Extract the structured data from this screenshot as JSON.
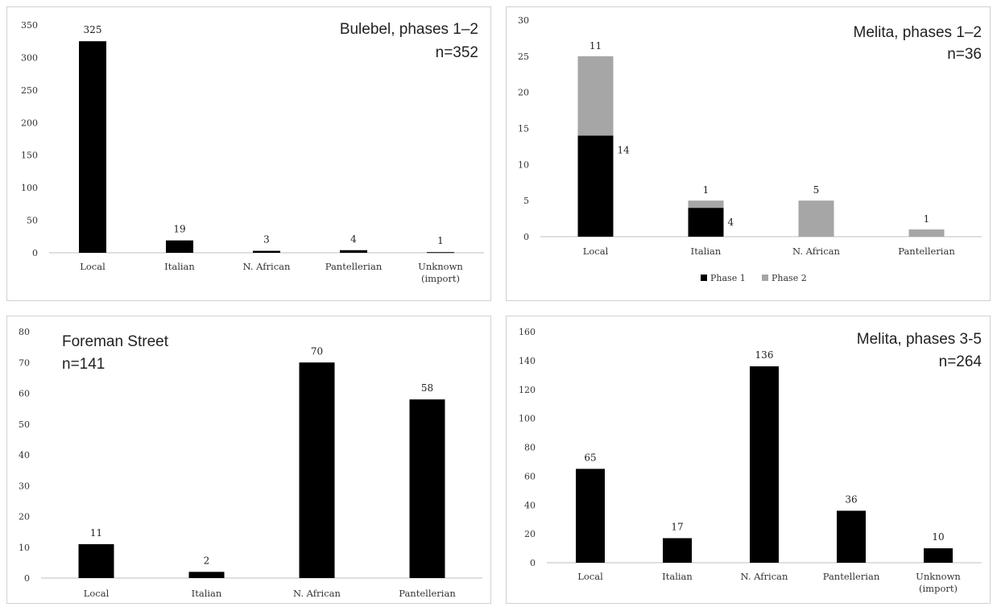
{
  "chart_data": [
    {
      "type": "bar",
      "title": "Bulebel, phases 1–2",
      "subtitle": "n=352",
      "categories": [
        "Local",
        "Italian",
        "N. African",
        "Pantellerian",
        "Unknown\n(import)"
      ],
      "values": [
        325,
        19,
        3,
        4,
        1
      ],
      "ylim": [
        0,
        350
      ],
      "yticks": [
        0,
        50,
        100,
        150,
        200,
        250,
        300,
        350
      ],
      "colors": {
        "bar": "#000000"
      }
    },
    {
      "type": "bar",
      "stacked": true,
      "title": "Melita, phases 1–2",
      "subtitle": "n=36",
      "categories": [
        "Local",
        "Italian",
        "N. African",
        "Pantellerian"
      ],
      "series": [
        {
          "name": "Phase  1",
          "values": [
            14,
            4,
            0,
            0
          ],
          "labels": [
            "14",
            "4",
            "",
            ""
          ],
          "color": "#000000"
        },
        {
          "name": "Phase 2",
          "values": [
            11,
            1,
            5,
            1
          ],
          "labels": [
            "11",
            "1",
            "5",
            "1"
          ],
          "color": "#a6a6a6"
        }
      ],
      "ylim": [
        0,
        30
      ],
      "yticks": [
        0,
        5,
        10,
        15,
        20,
        25,
        30
      ],
      "legend": "bottom"
    },
    {
      "type": "bar",
      "title": "Foreman Street",
      "subtitle": "n=141",
      "categories": [
        "Local",
        "Italian",
        "N. African",
        "Pantellerian"
      ],
      "values": [
        11,
        2,
        70,
        58
      ],
      "ylim": [
        0,
        80
      ],
      "yticks": [
        0,
        10,
        20,
        30,
        40,
        50,
        60,
        70,
        80
      ],
      "colors": {
        "bar": "#000000"
      }
    },
    {
      "type": "bar",
      "title": "Melita, phases 3-5",
      "subtitle": "n=264",
      "categories": [
        "Local",
        "Italian",
        "N. African",
        "Pantellerian",
        "Unknown\n(import)"
      ],
      "values": [
        65,
        17,
        136,
        36,
        10
      ],
      "ylim": [
        0,
        160
      ],
      "yticks": [
        0,
        20,
        40,
        60,
        80,
        100,
        120,
        140,
        160
      ],
      "colors": {
        "bar": "#000000"
      }
    }
  ]
}
